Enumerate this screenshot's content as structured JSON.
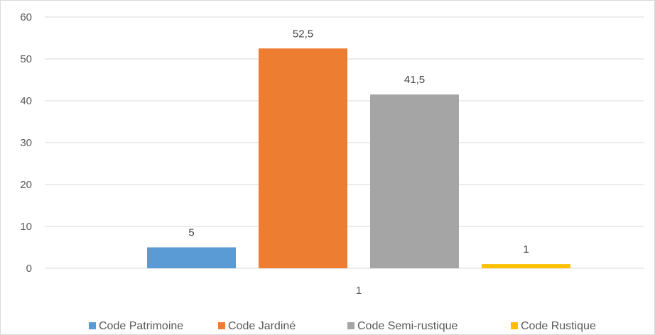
{
  "chart_data": {
    "type": "bar",
    "categories": [
      "1"
    ],
    "series": [
      {
        "name": "Code Patrimoine",
        "values": [
          5
        ],
        "color": "#5b9bd5",
        "label": "5"
      },
      {
        "name": "Code Jardiné",
        "values": [
          52.5
        ],
        "color": "#ed7d31",
        "label": "52,5"
      },
      {
        "name": "Code Semi-rustique",
        "values": [
          41.5
        ],
        "color": "#a5a5a5",
        "label": "41,5"
      },
      {
        "name": "Code Rustique",
        "values": [
          1
        ],
        "color": "#ffc000",
        "label": "1"
      }
    ],
    "ylim": [
      0,
      60
    ],
    "yticks": [
      0,
      10,
      20,
      30,
      40,
      50,
      60
    ],
    "grid": true,
    "legend_position": "bottom"
  }
}
